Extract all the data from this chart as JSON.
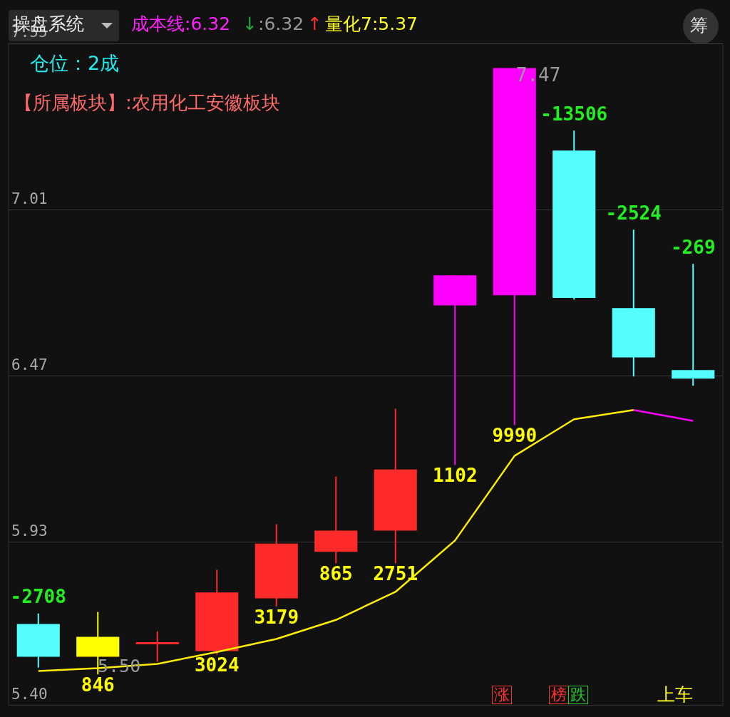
{
  "chart_data": {
    "type": "candlestick",
    "categories": [
      null,
      null,
      null,
      null,
      null,
      null,
      null,
      null,
      null,
      null,
      null,
      null
    ],
    "ylim": [
      5.4,
      7.55
    ],
    "yticks": [
      {
        "value": 5.4,
        "label": "5.40"
      },
      5.93,
      6.47,
      7.01,
      7.55
    ],
    "grid": "y",
    "tick_labels": "y",
    "legend": false,
    "series": [
      {
        "colors": [
          "#55ffff",
          "#ffff00",
          "#ff2a2a",
          "#ff2a2a",
          "#ff2a2a",
          "#ff2a2a",
          "#ff2a2a",
          "#ff00ff",
          "#ff00ff",
          "#55ffff",
          "#55ffff",
          "#55ffff"
        ],
        "ohlc": [
          [
            5.664,
            5.698,
            5.522,
            5.557
          ],
          [
            5.622,
            5.703,
            5.5,
            5.557
          ],
          [
            5.601,
            5.64,
            5.541,
            5.601
          ],
          [
            5.576,
            5.84,
            5.564,
            5.766
          ],
          [
            5.747,
            5.988,
            5.721,
            5.925
          ],
          [
            5.898,
            6.143,
            5.861,
            5.967
          ],
          [
            5.967,
            6.363,
            5.861,
            6.166
          ],
          [
            6.699,
            6.797,
            6.18,
            6.797
          ],
          [
            6.732,
            7.47,
            6.31,
            7.47
          ],
          [
            7.202,
            7.267,
            6.718,
            6.723
          ],
          [
            6.69,
            6.945,
            6.468,
            6.53
          ],
          [
            6.489,
            6.834,
            6.438,
            6.461
          ]
        ],
        "value_labels": [
          "-2708",
          "846",
          null,
          "3024",
          "3179",
          "865",
          "2751",
          "1102",
          "9990",
          "-13506",
          "-2524",
          "-269"
        ]
      },
      {
        "type": "line",
        "color": "#ffee00",
        "marker": "none",
        "values": [
          5.511,
          5.52,
          5.534,
          5.573,
          5.615,
          5.677,
          5.768,
          5.935,
          6.21,
          6.329,
          6.359,
          null
        ]
      },
      {
        "type": "line",
        "color": "#ff00ff",
        "marker": "none",
        "values": [
          null,
          null,
          null,
          null,
          null,
          null,
          null,
          null,
          null,
          null,
          6.359,
          6.324
        ]
      }
    ],
    "annotations": [
      "操盘系统",
      "成本线:6.32",
      "↓",
      ":6.32",
      "↑",
      "量化7:5.37",
      "筹",
      "仓位：2成",
      "【所属板块】:农用化工安徽板块",
      "涨",
      "榜",
      "跌",
      "上车",
      "5.50",
      {
        "text": "7.47",
        "y": 7.47
      }
    ]
  }
}
